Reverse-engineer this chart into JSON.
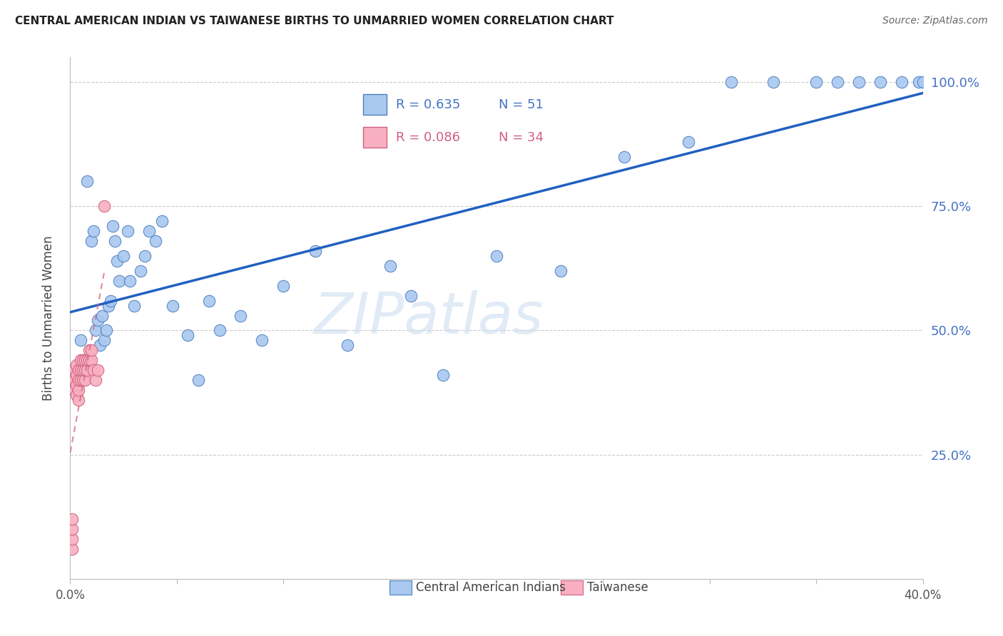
{
  "title": "CENTRAL AMERICAN INDIAN VS TAIWANESE BIRTHS TO UNMARRIED WOMEN CORRELATION CHART",
  "source": "Source: ZipAtlas.com",
  "ylabel": "Births to Unmarried Women",
  "xlim": [
    0.0,
    0.4
  ],
  "ylim": [
    0.0,
    1.05
  ],
  "x_tick_positions": [
    0.0,
    0.05,
    0.1,
    0.15,
    0.2,
    0.25,
    0.3,
    0.35,
    0.4
  ],
  "x_tick_labels": [
    "0.0%",
    "",
    "",
    "",
    "",
    "",
    "",
    "",
    "40.0%"
  ],
  "y_tick_positions": [
    0.0,
    0.25,
    0.5,
    0.75,
    1.0
  ],
  "y_tick_labels_right": [
    "",
    "25.0%",
    "50.0%",
    "75.0%",
    "100.0%"
  ],
  "legend_R1": "R = 0.635",
  "legend_N1": "N = 51",
  "legend_R2": "R = 0.086",
  "legend_N2": "N = 34",
  "legend_label1": "Central American Indians",
  "legend_label2": "Taiwanese",
  "watermark": "ZIPatlas",
  "blue_color": "#A8C8F0",
  "blue_edge_color": "#5080C0",
  "blue_line_color": "#2060C0",
  "pink_color": "#F8B0C0",
  "pink_edge_color": "#D06080",
  "pink_line_color": "#D06880",
  "blue_x": [
    0.005,
    0.008,
    0.01,
    0.011,
    0.012,
    0.013,
    0.014,
    0.015,
    0.016,
    0.017,
    0.018,
    0.019,
    0.02,
    0.021,
    0.022,
    0.023,
    0.025,
    0.027,
    0.028,
    0.03,
    0.033,
    0.035,
    0.037,
    0.04,
    0.043,
    0.048,
    0.055,
    0.06,
    0.065,
    0.07,
    0.08,
    0.09,
    0.1,
    0.115,
    0.13,
    0.15,
    0.16,
    0.175,
    0.2,
    0.23,
    0.26,
    0.29,
    0.31,
    0.33,
    0.35,
    0.36,
    0.37,
    0.38,
    0.39,
    0.398,
    0.4
  ],
  "blue_y": [
    0.48,
    0.8,
    0.68,
    0.7,
    0.5,
    0.52,
    0.47,
    0.53,
    0.48,
    0.5,
    0.55,
    0.56,
    0.71,
    0.68,
    0.64,
    0.6,
    0.65,
    0.7,
    0.6,
    0.55,
    0.62,
    0.65,
    0.7,
    0.68,
    0.72,
    0.55,
    0.49,
    0.4,
    0.56,
    0.5,
    0.53,
    0.48,
    0.59,
    0.66,
    0.47,
    0.63,
    0.57,
    0.41,
    0.65,
    0.62,
    0.85,
    0.88,
    1.0,
    1.0,
    1.0,
    1.0,
    1.0,
    1.0,
    1.0,
    1.0,
    1.0
  ],
  "pink_x": [
    0.001,
    0.001,
    0.001,
    0.001,
    0.002,
    0.002,
    0.002,
    0.003,
    0.003,
    0.003,
    0.003,
    0.004,
    0.004,
    0.004,
    0.004,
    0.005,
    0.005,
    0.005,
    0.006,
    0.006,
    0.006,
    0.007,
    0.007,
    0.007,
    0.008,
    0.008,
    0.009,
    0.009,
    0.01,
    0.01,
    0.011,
    0.012,
    0.013,
    0.016
  ],
  "pink_y": [
    0.06,
    0.08,
    0.1,
    0.12,
    0.38,
    0.4,
    0.42,
    0.37,
    0.39,
    0.41,
    0.43,
    0.36,
    0.38,
    0.4,
    0.42,
    0.4,
    0.42,
    0.44,
    0.4,
    0.42,
    0.44,
    0.4,
    0.42,
    0.44,
    0.42,
    0.44,
    0.44,
    0.46,
    0.44,
    0.46,
    0.42,
    0.4,
    0.42,
    0.75
  ]
}
